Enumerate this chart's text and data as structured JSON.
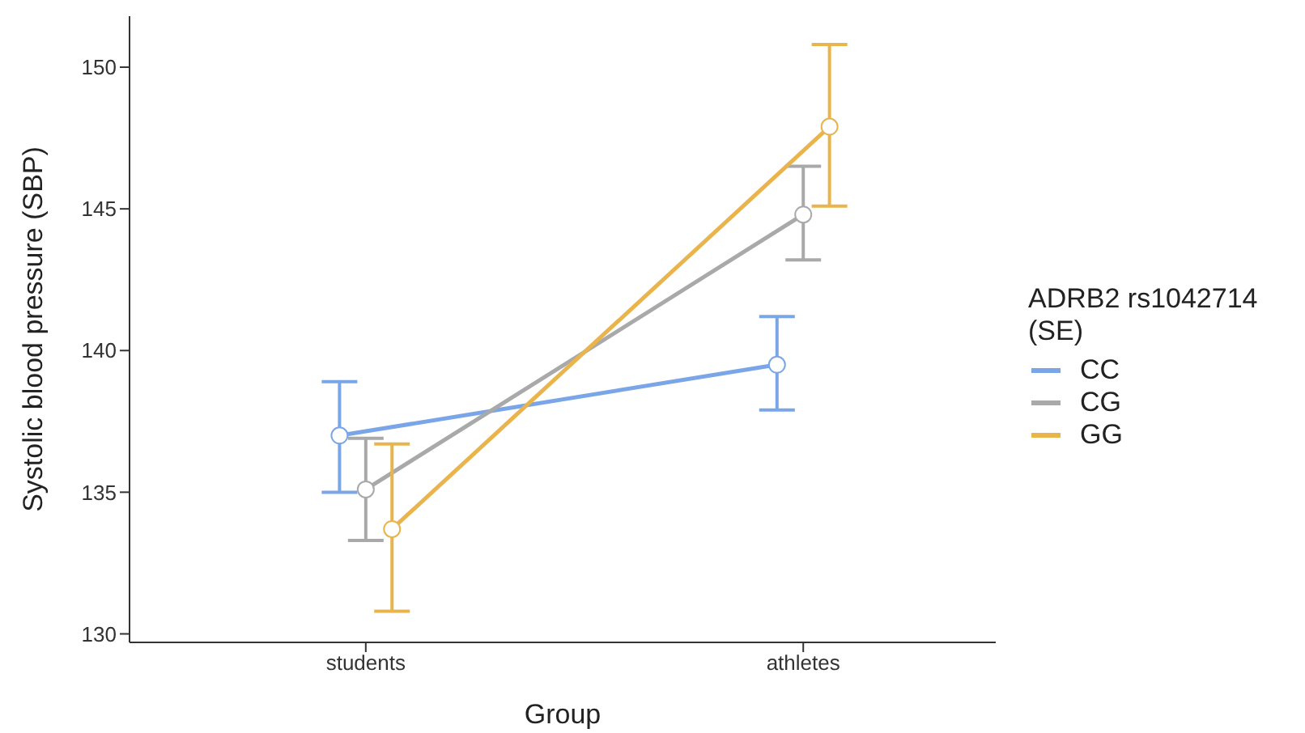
{
  "chart_data": {
    "type": "line",
    "xlabel": "Group",
    "ylabel": "Systolic blood pressure (SBP)",
    "legend_title": "ADRB2 rs1042714\n(SE)",
    "legend": "right",
    "marker": "circle",
    "line_style": "solid",
    "categories": [
      "students",
      "athletes"
    ],
    "ylim": [
      129.7,
      151.8
    ],
    "yticks": [
      130,
      135,
      140,
      145,
      150
    ],
    "series": [
      {
        "name": "CC",
        "color": "#7aa6e8",
        "values": [
          137.0,
          139.5
        ],
        "errors": [
          [
            135.0,
            138.9
          ],
          [
            137.9,
            141.2
          ]
        ]
      },
      {
        "name": "CG",
        "color": "#a9a9a9",
        "values": [
          135.1,
          144.8
        ],
        "errors": [
          [
            133.3,
            136.9
          ],
          [
            143.2,
            146.5
          ]
        ]
      },
      {
        "name": "GG",
        "color": "#e9b44c",
        "values": [
          133.7,
          147.9
        ],
        "errors": [
          [
            130.8,
            136.7
          ],
          [
            145.1,
            150.8
          ]
        ]
      }
    ]
  }
}
